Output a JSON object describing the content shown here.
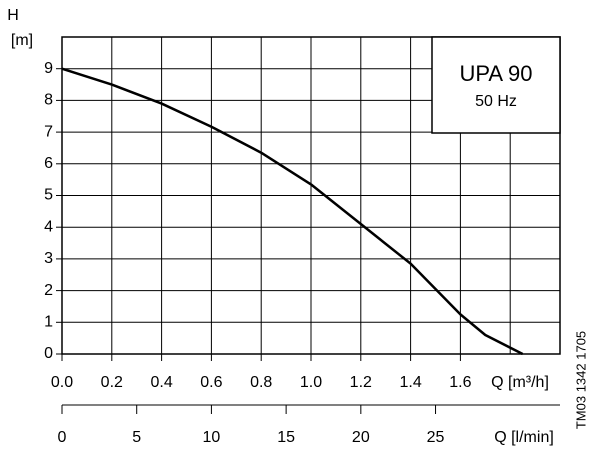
{
  "chart_data": {
    "type": "line",
    "ylabel_symbol": "H",
    "ylabel_unit": "[m]",
    "xlabel": "Q [m³/h]",
    "x2label": "Q [l/min]",
    "legend_title": "UPA 90",
    "legend_subtitle": "50 Hz",
    "side_code": "TM03 1342 1705",
    "x": [
      0,
      0.2,
      0.4,
      0.6,
      0.8,
      1.0,
      1.2,
      1.4,
      1.6,
      1.7,
      1.85
    ],
    "series": [
      {
        "name": "UPA 90",
        "color": "#000000",
        "values": [
          9,
          8.5,
          7.9,
          7.17,
          6.35,
          5.35,
          4.1,
          2.85,
          1.25,
          0.6,
          0
        ]
      }
    ],
    "xlim": [
      0,
      2
    ],
    "xticks": [
      {
        "value": 0,
        "label": "0.0"
      },
      {
        "value": 0.2,
        "label": "0.2"
      },
      {
        "value": 0.4,
        "label": "0.4"
      },
      {
        "value": 0.6,
        "label": "0.6"
      },
      {
        "value": 0.8,
        "label": "0.8"
      },
      {
        "value": 1.0,
        "label": "1.0"
      },
      {
        "value": 1.2,
        "label": "1.2"
      },
      {
        "value": 1.4,
        "label": "1.4"
      },
      {
        "value": 1.6,
        "label": "1.6"
      }
    ],
    "xgrid": [
      0.2,
      0.4,
      0.6,
      0.8,
      1.0,
      1.2,
      1.4,
      1.6,
      1.8
    ],
    "x2lim": [
      0,
      33.33
    ],
    "x2ticks": [
      0,
      5,
      10,
      15,
      20,
      25
    ],
    "ylim": [
      0,
      10
    ],
    "yticks": [
      0,
      1,
      2,
      3,
      4,
      5,
      6,
      7,
      8,
      9
    ],
    "grid": true
  }
}
